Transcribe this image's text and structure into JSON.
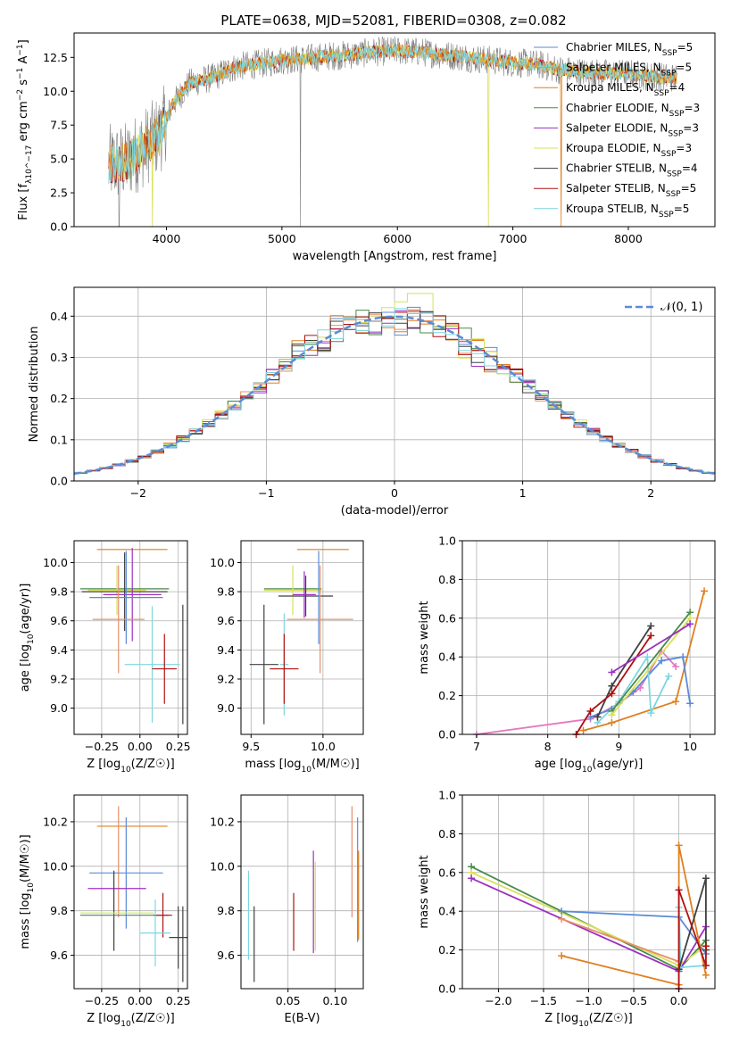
{
  "figure_title": "PLATE=0638, MJD=52081, FIBERID=0308, z=0.082",
  "colors": {
    "Chabrier MILES": "#5b8bd6",
    "Salpeter MILES": "#e58f6b",
    "Kroupa MILES": "#e07f1e",
    "Chabrier ELODIE": "#4a8a4a",
    "Salpeter ELODIE": "#9b30c0",
    "Kroupa ELODIE": "#d8e05a",
    "Chabrier STELIB": "#404040",
    "Salpeter STELIB": "#b01010",
    "Kroupa STELIB": "#7dd6e0",
    "gaussian": "#5b8bd6",
    "pink": "#e377c2",
    "green_light": "#a6d96a",
    "data": "#808080"
  },
  "chart_data": [
    {
      "id": "spectrum",
      "type": "line",
      "title": "PLATE=0638, MJD=52081, FIBERID=0308, z=0.082",
      "xlabel": "wavelength [Angstrom, rest frame]",
      "ylabel_html": "Flux [f_λ 10^-17 erg cm^-2 s^-1 A^-1]",
      "ylabel": "Flux",
      "ylabel_unit": "[f_λ 10^-17 erg cm^-2 s^-1 A^-1]",
      "xlim": [
        3200,
        8750
      ],
      "ylim": [
        0,
        14.3
      ],
      "xticks": [
        4000,
        5000,
        6000,
        7000,
        8000
      ],
      "yticks": [
        0.0,
        2.5,
        5.0,
        7.5,
        10.0,
        12.5
      ],
      "ytick_labels": [
        "0.0",
        "2.5",
        "5.0",
        "7.5",
        "10.0",
        "12.5"
      ],
      "legend": [
        "Chabrier MILES, N_SSP=5",
        "Salpeter MILES, N_SSP=5",
        "Kroupa MILES, N_SSP=4",
        "Chabrier ELODIE, N_SSP=3",
        "Salpeter ELODIE, N_SSP=3",
        "Kroupa ELODIE, N_SSP=3",
        "Chabrier STELIB, N_SSP=4",
        "Salpeter STELIB, N_SSP=5",
        "Kroupa STELIB, N_SSP=5"
      ],
      "legend_position": "right",
      "continuum": [
        [
          3500,
          4.6
        ],
        [
          3650,
          4.8
        ],
        [
          3800,
          5.8
        ],
        [
          3950,
          6.9
        ],
        [
          4050,
          9.0
        ],
        [
          4200,
          10.6
        ],
        [
          4400,
          11.0
        ],
        [
          4600,
          11.8
        ],
        [
          4800,
          12.0
        ],
        [
          5000,
          12.3
        ],
        [
          5200,
          12.4
        ],
        [
          5400,
          12.6
        ],
        [
          5600,
          12.7
        ],
        [
          5800,
          12.9
        ],
        [
          6000,
          13.0
        ],
        [
          6200,
          12.9
        ],
        [
          6400,
          12.7
        ],
        [
          6600,
          12.5
        ],
        [
          6800,
          12.3
        ],
        [
          7000,
          12.1
        ],
        [
          7200,
          12.0
        ],
        [
          7400,
          11.6
        ],
        [
          7600,
          11.4
        ],
        [
          7800,
          11.3
        ],
        [
          8000,
          11.3
        ],
        [
          8200,
          11.1
        ],
        [
          8400,
          11.0
        ]
      ]
    },
    {
      "id": "residuals",
      "type": "line",
      "xlabel": "(data-model)/error",
      "ylabel": "Normed distribution",
      "xlim": [
        -2.5,
        2.5
      ],
      "ylim": [
        0,
        0.47
      ],
      "xticks": [
        -2,
        -1,
        0,
        1,
        2
      ],
      "xtick_labels": [
        "−2",
        "−1",
        "0",
        "1",
        "2"
      ],
      "yticks": [
        0.0,
        0.1,
        0.2,
        0.3,
        0.4
      ],
      "ytick_labels": [
        "0.0",
        "0.1",
        "0.2",
        "0.3",
        "0.4"
      ],
      "legend": "𝒩(0, 1)",
      "legend_position": "top-right",
      "grid": true
    },
    {
      "id": "age_vs_Z",
      "type": "scatter",
      "xlabel": "Z [log10(Z/Z☉)]",
      "ylabel": "age  [log10(age/yr)]",
      "xlim": [
        -0.43,
        0.31
      ],
      "ylim": [
        8.82,
        10.15
      ],
      "xticks": [
        -0.25,
        0.0,
        0.25
      ],
      "xtick_labels": [
        "−0.25",
        "0.00",
        "0.25"
      ],
      "yticks": [
        9.0,
        9.2,
        9.4,
        9.6,
        9.8,
        10.0
      ],
      "ytick_labels": [
        "9.0",
        "9.2",
        "9.4",
        "9.6",
        "9.8",
        "10.0"
      ],
      "grid": true,
      "points": [
        {
          "c": "Kroupa MILES",
          "x": -0.05,
          "xerr": 0.23,
          "y": 10.09,
          "yerr": 0.0
        },
        {
          "c": "Chabrier ELODIE",
          "x": -0.1,
          "xerr": 0.29,
          "y": 9.82,
          "yerr": 0.0
        },
        {
          "c": "Kroupa ELODIE",
          "x": -0.15,
          "xerr": 0.19,
          "y": 9.81,
          "yerr": 0.17
        },
        {
          "c": "Chabrier STELIB",
          "x": -0.1,
          "xerr": 0.28,
          "y": 9.8,
          "yerr": 0.27
        },
        {
          "c": "Salpeter ELODIE",
          "x": -0.05,
          "xerr": 0.19,
          "y": 9.78,
          "yerr": 0.32
        },
        {
          "c": "Chabrier MILES",
          "x": -0.09,
          "xerr": 0.24,
          "y": 9.76,
          "yerr": 0.32
        },
        {
          "c": "Salpeter MILES",
          "x": -0.14,
          "xerr": 0.17,
          "y": 9.61,
          "yerr": 0.37
        },
        {
          "c": "Kroupa STELIB",
          "x": 0.08,
          "xerr": 0.18,
          "y": 9.3,
          "yerr": 0.4
        },
        {
          "c": "Chabrier STELIB",
          "x": 0.28,
          "xerr": 0.0,
          "y": 9.3,
          "yerr": 0.41
        },
        {
          "c": "Salpeter STELIB",
          "x": 0.16,
          "xerr": 0.08,
          "y": 9.27,
          "yerr": 0.24
        }
      ]
    },
    {
      "id": "age_vs_mass",
      "type": "scatter",
      "xlabel": "mass [log10(M/M☉)]",
      "xlim": [
        9.43,
        10.28
      ],
      "ylim": [
        8.82,
        10.15
      ],
      "xticks": [
        9.5,
        10.0
      ],
      "xtick_labels": [
        "9.5",
        "10.0"
      ],
      "yticks": [
        9.0,
        9.2,
        9.4,
        9.6,
        9.8,
        10.0
      ],
      "ytick_labels": [
        "9.0",
        "9.2",
        "9.4",
        "9.6",
        "9.8",
        "10.0"
      ],
      "grid": true,
      "points": [
        {
          "c": "Kroupa MILES",
          "x": 10.0,
          "xerr": 0.18,
          "y": 10.09,
          "yerr": 0.0
        },
        {
          "c": "Chabrier ELODIE",
          "x": 9.79,
          "xerr": 0.2,
          "y": 9.82,
          "yerr": 0.0
        },
        {
          "c": "Kroupa ELODIE",
          "x": 9.79,
          "xerr": 0.2,
          "y": 9.81,
          "yerr": 0.17
        },
        {
          "c": "Chabrier STELIB",
          "x": 9.88,
          "xerr": 0.19,
          "y": 9.77,
          "yerr": 0.14
        },
        {
          "c": "Salpeter ELODIE",
          "x": 9.87,
          "xerr": 0.08,
          "y": 9.78,
          "yerr": 0.16
        },
        {
          "c": "Chabrier MILES",
          "x": 9.97,
          "xerr": 0.0,
          "y": 9.76,
          "yerr": 0.32
        },
        {
          "c": "Salpeter MILES",
          "x": 9.98,
          "xerr": 0.23,
          "y": 9.61,
          "yerr": 0.37
        },
        {
          "c": "Kroupa STELIB",
          "x": 9.73,
          "xerr": 0.03,
          "y": 9.3,
          "yerr": 0.35
        },
        {
          "c": "Chabrier STELIB",
          "x": 9.59,
          "xerr": 0.1,
          "y": 9.3,
          "yerr": 0.41
        },
        {
          "c": "Salpeter STELIB",
          "x": 9.73,
          "xerr": 0.1,
          "y": 9.27,
          "yerr": 0.24
        }
      ]
    },
    {
      "id": "weight_vs_age",
      "type": "line",
      "xlabel": "age  [log10(age/yr)]",
      "ylabel": "mass weight",
      "xlim": [
        6.8,
        10.35
      ],
      "ylim": [
        0,
        1.0
      ],
      "xticks": [
        7,
        8,
        9,
        10
      ],
      "xtick_labels": [
        "7",
        "8",
        "9",
        "10"
      ],
      "yticks": [
        0.0,
        0.2,
        0.4,
        0.6,
        0.8,
        1.0
      ],
      "ytick_labels": [
        "0.0",
        "0.2",
        "0.4",
        "0.6",
        "0.8",
        "1.0"
      ],
      "grid": true,
      "series": [
        {
          "c": "pink",
          "x": [
            7.0,
            8.6,
            9.0,
            9.3,
            9.6,
            9.8
          ],
          "y": [
            0.0,
            0.08,
            0.16,
            0.24,
            0.43,
            0.35
          ]
        },
        {
          "c": "Kroupa MILES",
          "x": [
            8.5,
            8.9,
            9.8,
            10.2
          ],
          "y": [
            0.02,
            0.06,
            0.17,
            0.74
          ]
        },
        {
          "c": "Chabrier MILES",
          "x": [
            8.6,
            8.9,
            9.2,
            9.6,
            9.9,
            10.0
          ],
          "y": [
            0.09,
            0.13,
            0.22,
            0.38,
            0.4,
            0.16
          ]
        },
        {
          "c": "Kroupa STELIB",
          "x": [
            8.7,
            9.0,
            9.4,
            9.45,
            9.7
          ],
          "y": [
            0.06,
            0.17,
            0.4,
            0.11,
            0.3
          ]
        },
        {
          "c": "Chabrier STELIB",
          "x": [
            8.7,
            8.9,
            9.45
          ],
          "y": [
            0.09,
            0.25,
            0.56
          ]
        },
        {
          "c": "Salpeter STELIB",
          "x": [
            8.4,
            8.6,
            8.9,
            9.45
          ],
          "y": [
            0.0,
            0.12,
            0.21,
            0.51
          ]
        },
        {
          "c": "Chabrier ELODIE",
          "x": [
            8.9,
            10.0
          ],
          "y": [
            0.12,
            0.63
          ]
        },
        {
          "c": "Kroupa ELODIE",
          "x": [
            8.9,
            10.0
          ],
          "y": [
            0.1,
            0.6
          ]
        },
        {
          "c": "Salpeter ELODIE",
          "x": [
            8.9,
            10.0
          ],
          "y": [
            0.32,
            0.57
          ]
        }
      ]
    },
    {
      "id": "mass_vs_Z",
      "type": "scatter",
      "xlabel": "Z [log10(Z/Z☉)]",
      "ylabel": "mass [log10(M/M☉)]",
      "xlim": [
        -0.43,
        0.31
      ],
      "ylim": [
        9.45,
        10.32
      ],
      "xticks": [
        -0.25,
        0.0,
        0.25
      ],
      "xtick_labels": [
        "−0.25",
        "0.00",
        "0.25"
      ],
      "yticks": [
        9.6,
        9.8,
        10.0,
        10.2
      ],
      "ytick_labels": [
        "9.6",
        "9.8",
        "10.0",
        "10.2"
      ],
      "grid": true,
      "points": [
        {
          "c": "Kroupa MILES",
          "x": -0.05,
          "xerr": 0.23,
          "y": 10.18,
          "yerr": 0.0
        },
        {
          "c": "Salpeter MILES",
          "x": -0.14,
          "xerr": 0.0,
          "y": 10.02,
          "yerr": 0.25
        },
        {
          "c": "Chabrier MILES",
          "x": -0.09,
          "xerr": 0.24,
          "y": 9.97,
          "yerr": 0.25
        },
        {
          "c": "Salpeter ELODIE",
          "x": -0.15,
          "xerr": 0.19,
          "y": 9.9,
          "yerr": 0.0
        },
        {
          "c": "Chabrier STELIB",
          "x": -0.17,
          "xerr": 0.0,
          "y": 9.8,
          "yerr": 0.18
        },
        {
          "c": "Chabrier ELODIE",
          "x": -0.1,
          "xerr": 0.29,
          "y": 9.78,
          "yerr": 0.0
        },
        {
          "c": "Kroupa ELODIE",
          "x": -0.15,
          "xerr": 0.24,
          "y": 9.79,
          "yerr": 0.0
        },
        {
          "c": "Salpeter STELIB",
          "x": 0.15,
          "xerr": 0.06,
          "y": 9.78,
          "yerr": 0.1
        },
        {
          "c": "Kroupa STELIB",
          "x": 0.1,
          "xerr": 0.1,
          "y": 9.7,
          "yerr": 0.15
        },
        {
          "c": "Chabrier STELIB",
          "x": 0.25,
          "xerr": 0.06,
          "y": 9.68,
          "yerr": 0.14
        },
        {
          "c": "Chabrier STELIB",
          "x": 0.28,
          "xerr": 0.0,
          "y": 9.65,
          "yerr": 0.17
        }
      ]
    },
    {
      "id": "mass_vs_EBV",
      "type": "scatter",
      "xlabel": "E(B-V)",
      "xlim": [
        0.0,
        0.13
      ],
      "ylim": [
        9.45,
        10.32
      ],
      "xticks": [
        0.05,
        0.1
      ],
      "xtick_labels": [
        "0.05",
        "0.10"
      ],
      "yticks": [
        9.6,
        9.8,
        10.0,
        10.2
      ],
      "ytick_labels": [
        "9.6",
        "9.8",
        "10.0",
        "10.2"
      ],
      "grid": true,
      "points": [
        {
          "c": "Kroupa STELIB",
          "x": 0.008,
          "yerr": 0.2,
          "y": 9.78
        },
        {
          "c": "Chabrier STELIB",
          "x": 0.014,
          "yerr": 0.17,
          "y": 9.65
        },
        {
          "c": "Salpeter STELIB",
          "x": 0.056,
          "yerr": 0.13,
          "y": 9.75
        },
        {
          "c": "Salpeter ELODIE",
          "x": 0.077,
          "yerr": 0.23,
          "y": 9.84
        },
        {
          "c": "Kroupa ELODIE",
          "x": 0.079,
          "yerr": 0.2,
          "y": 9.82
        },
        {
          "c": "Salpeter MILES",
          "x": 0.118,
          "yerr": 0.25,
          "y": 10.02
        },
        {
          "c": "Chabrier MILES",
          "x": 0.124,
          "yerr": 0.28,
          "y": 9.94
        },
        {
          "c": "Kroupa MILES",
          "x": 0.125,
          "yerr": 0.2,
          "y": 9.87
        }
      ]
    },
    {
      "id": "weight_vs_Z",
      "type": "line",
      "xlabel": "Z [log10(Z/Z☉)]",
      "ylabel": "mass weight",
      "xlim": [
        -2.4,
        0.4
      ],
      "ylim": [
        0,
        1.0
      ],
      "xticks": [
        -2.0,
        -1.5,
        -1.0,
        -0.5,
        0.0
      ],
      "xtick_labels": [
        "−2.0",
        "−1.5",
        "−1.0",
        "−0.5",
        "0.0"
      ],
      "yticks": [
        0.0,
        0.2,
        0.4,
        0.6,
        0.8,
        1.0
      ],
      "ytick_labels": [
        "0.0",
        "0.2",
        "0.4",
        "0.6",
        "0.8",
        "1.0"
      ],
      "grid": true,
      "series": [
        {
          "c": "Chabrier ELODIE",
          "x": [
            -2.3,
            0.0,
            0.3
          ],
          "y": [
            0.63,
            0.1,
            0.25
          ]
        },
        {
          "c": "Kroupa ELODIE",
          "x": [
            -2.3,
            0.0,
            0.3
          ],
          "y": [
            0.6,
            0.12,
            0.22
          ]
        },
        {
          "c": "Salpeter ELODIE",
          "x": [
            -2.3,
            0.0,
            0.3
          ],
          "y": [
            0.57,
            0.09,
            0.32
          ]
        },
        {
          "c": "Chabrier MILES",
          "x": [
            -1.3,
            0.0,
            0.3
          ],
          "y": [
            0.4,
            0.37,
            0.18
          ]
        },
        {
          "c": "Salpeter MILES",
          "x": [
            -1.3,
            0.0
          ],
          "y": [
            0.36,
            0.14
          ]
        },
        {
          "c": "Kroupa MILES",
          "x": [
            -1.3,
            0.0,
            0.0,
            0.3
          ],
          "y": [
            0.17,
            0.02,
            0.74,
            0.07
          ]
        },
        {
          "c": "Kroupa STELIB",
          "x": [
            0.0,
            0.02,
            0.3
          ],
          "y": [
            0.42,
            0.11,
            0.12
          ]
        },
        {
          "c": "Chabrier STELIB",
          "x": [
            0.0,
            0.3,
            0.3
          ],
          "y": [
            0.1,
            0.57,
            0.2
          ]
        },
        {
          "c": "Salpeter STELIB",
          "x": [
            0.0,
            0.0,
            0.3,
            0.3
          ],
          "y": [
            0.0,
            0.51,
            0.12,
            0.22
          ]
        }
      ]
    }
  ]
}
